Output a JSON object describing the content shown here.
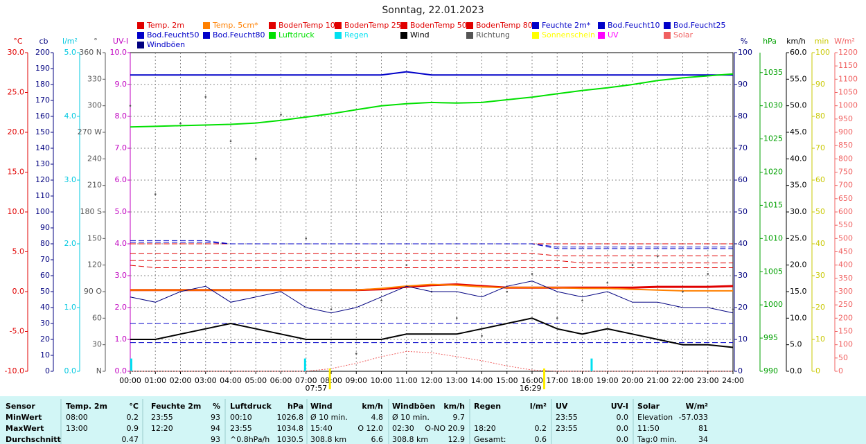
{
  "chart_data": {
    "type": "line",
    "title": "Sonntag, 22.01.2023",
    "grid": true,
    "x": [
      0,
      1,
      2,
      3,
      4,
      5,
      6,
      7,
      8,
      9,
      10,
      11,
      12,
      13,
      14,
      15,
      16,
      17,
      18,
      19,
      20,
      21,
      22,
      23,
      24
    ],
    "xlim": [
      0,
      24
    ],
    "xticks": [
      {
        "value": 0,
        "label": "00:00"
      },
      {
        "value": 1,
        "label": "01:00"
      },
      {
        "value": 2,
        "label": "02:00"
      },
      {
        "value": 3,
        "label": "03:00"
      },
      {
        "value": 4,
        "label": "04:00"
      },
      {
        "value": 5,
        "label": "05:00"
      },
      {
        "value": 6,
        "label": "06:00"
      },
      {
        "value": 7,
        "label": "07:00"
      },
      {
        "value": 8,
        "label": "08:00"
      },
      {
        "value": 9,
        "label": "09:00"
      },
      {
        "value": 10,
        "label": "10:00"
      },
      {
        "value": 11,
        "label": "11:00"
      },
      {
        "value": 12,
        "label": "12:00"
      },
      {
        "value": 13,
        "label": "13:00"
      },
      {
        "value": 14,
        "label": "14:00"
      },
      {
        "value": 15,
        "label": "15:00"
      },
      {
        "value": 16,
        "label": "16:00"
      },
      {
        "value": 17,
        "label": "17:00"
      },
      {
        "value": 18,
        "label": "18:00"
      },
      {
        "value": 19,
        "label": "19:00"
      },
      {
        "value": 20,
        "label": "20:00"
      },
      {
        "value": 21,
        "label": "21:00"
      },
      {
        "value": 22,
        "label": "22:00"
      },
      {
        "value": 23,
        "label": "23:00"
      },
      {
        "value": 24,
        "label": "24:00"
      }
    ],
    "sunrise": "07:57",
    "sunset": "16:29",
    "axes": [
      {
        "label": "°C",
        "side": "left",
        "color": "#e00000",
        "lim": [
          -10,
          30
        ],
        "ticks": [
          {
            "value": -10,
            "label": "-10.0"
          },
          {
            "value": -5,
            "label": "-5.0"
          },
          {
            "value": 0,
            "label": "0.0"
          },
          {
            "value": 5,
            "label": "5.0"
          },
          {
            "value": 10,
            "label": "10.0"
          },
          {
            "value": 15,
            "label": "15.0"
          },
          {
            "value": 20,
            "label": "20.0"
          },
          {
            "value": 25,
            "label": "25.0"
          },
          {
            "value": 30,
            "label": "30.0"
          }
        ]
      },
      {
        "label": "cb",
        "side": "left",
        "color": "#000080",
        "lim": [
          0,
          200
        ],
        "ticks": [
          0,
          10,
          20,
          30,
          40,
          50,
          60,
          70,
          80,
          90,
          100,
          110,
          120,
          130,
          140,
          150,
          160,
          170,
          180,
          190,
          200
        ]
      },
      {
        "label": "l/m²",
        "side": "left",
        "color": "#00c8e0",
        "lim": [
          0,
          5
        ],
        "ticks": [
          {
            "value": 0,
            "label": "0.0"
          },
          {
            "value": 1,
            "label": "1.0"
          },
          {
            "value": 2,
            "label": "2.0"
          },
          {
            "value": 3,
            "label": "3.0"
          },
          {
            "value": 4,
            "label": "4.0"
          },
          {
            "value": 5,
            "label": "5.0"
          }
        ]
      },
      {
        "label": "°",
        "side": "left",
        "color": "#555555",
        "lim": [
          0,
          360
        ],
        "ticks": [
          {
            "value": 0,
            "label": "N"
          },
          30,
          60,
          {
            "value": 90,
            "label": "90 O"
          },
          120,
          150,
          {
            "value": 180,
            "label": "180 S"
          },
          210,
          240,
          {
            "value": 270,
            "label": "270 W"
          },
          300,
          330,
          {
            "value": 360,
            "label": "360 N"
          }
        ]
      },
      {
        "label": "UV-I",
        "side": "left",
        "color": "#c000c0",
        "lim": [
          0,
          10
        ],
        "ticks": [
          {
            "value": 0,
            "label": "0.0"
          },
          {
            "value": 1,
            "label": "1.0"
          },
          {
            "value": 2,
            "label": "2.0"
          },
          {
            "value": 3,
            "label": "3.0"
          },
          {
            "value": 4,
            "label": "4.0"
          },
          {
            "value": 5,
            "label": "5.0"
          },
          {
            "value": 6,
            "label": "6.0"
          },
          {
            "value": 7,
            "label": "7.0"
          },
          {
            "value": 8,
            "label": "8.0"
          },
          {
            "value": 9,
            "label": "9.0"
          },
          {
            "value": 10,
            "label": "10.0"
          }
        ]
      },
      {
        "label": "%",
        "side": "right",
        "color": "#000080",
        "lim": [
          0,
          100
        ],
        "ticks": [
          0,
          10,
          20,
          30,
          40,
          50,
          60,
          70,
          80,
          90,
          100
        ]
      },
      {
        "label": "hPa",
        "side": "right",
        "color": "#00a000",
        "lim": [
          990,
          1038
        ],
        "ticks": [
          990,
          995,
          1000,
          1005,
          1010,
          1015,
          1020,
          1025,
          1030,
          1035
        ]
      },
      {
        "label": "km/h",
        "side": "right",
        "color": "#000000",
        "lim": [
          0,
          60
        ],
        "ticks": [
          {
            "value": 0,
            "label": "0.0"
          },
          {
            "value": 5,
            "label": "5.0"
          },
          {
            "value": 10,
            "label": "10.0"
          },
          {
            "value": 15,
            "label": "15.0"
          },
          {
            "value": 20,
            "label": "20.0"
          },
          {
            "value": 25,
            "label": "25.0"
          },
          {
            "value": 30,
            "label": "30.0"
          },
          {
            "value": 35,
            "label": "35.0"
          },
          {
            "value": 40,
            "label": "40.0"
          },
          {
            "value": 45,
            "label": "45.0"
          },
          {
            "value": 50,
            "label": "50.0"
          },
          {
            "value": 55,
            "label": "55.0"
          },
          {
            "value": 60,
            "label": "60.0"
          }
        ]
      },
      {
        "label": "min",
        "side": "right",
        "color": "#c8c800",
        "lim": [
          0,
          100
        ],
        "ticks": [
          0,
          10,
          20,
          30,
          40,
          50,
          60,
          70,
          80,
          90,
          100
        ]
      },
      {
        "label": "W/m²",
        "side": "right",
        "color": "#f06060",
        "lim": [
          0,
          1200
        ],
        "ticks": [
          0,
          50,
          100,
          150,
          200,
          250,
          300,
          350,
          400,
          450,
          500,
          550,
          600,
          650,
          700,
          750,
          800,
          850,
          900,
          950,
          1000,
          1050,
          1100,
          1150,
          1200
        ]
      }
    ],
    "series": [
      {
        "name": "Temp. 2m",
        "color": "#e00000",
        "axis": "°C",
        "style": "line",
        "line_width": 3,
        "values": [
          0.2,
          0.2,
          0.2,
          0.2,
          0.2,
          0.2,
          0.2,
          0.2,
          0.2,
          0.2,
          0.3,
          0.6,
          0.8,
          0.9,
          0.7,
          0.5,
          0.5,
          0.5,
          0.5,
          0.5,
          0.5,
          0.6,
          0.6,
          0.6,
          0.7
        ]
      },
      {
        "name": "Temp. 5cm*",
        "color": "#ff8000",
        "axis": "°C",
        "style": "line",
        "line_width": 2,
        "values": [
          0.2,
          0.2,
          0.2,
          0.2,
          0.2,
          0.2,
          0.2,
          0.2,
          0.2,
          0.2,
          0.4,
          0.7,
          0.9,
          0.8,
          0.6,
          0.5,
          0.5,
          0.5,
          0.4,
          0.4,
          0.3,
          0.2,
          0.1,
          0.1,
          0.1
        ]
      },
      {
        "name": "BodenTemp 10",
        "color": "#e00000",
        "axis": "°C",
        "style": "dashed",
        "line_width": 1,
        "values": [
          3.3,
          3.0,
          3.0,
          3.0,
          3.0,
          3.0,
          3.0,
          3.0,
          3.0,
          3.0,
          3.0,
          3.0,
          3.0,
          3.0,
          3.0,
          3.0,
          3.0,
          3.0,
          3.0,
          3.0,
          3.0,
          3.0,
          3.0,
          3.0,
          3.0
        ]
      },
      {
        "name": "BodenTemp 25",
        "color": "#e00000",
        "axis": "°C",
        "style": "dashed",
        "line_width": 1,
        "values": [
          3.9,
          3.9,
          3.9,
          3.9,
          3.9,
          3.9,
          3.9,
          3.9,
          3.9,
          3.9,
          3.9,
          3.9,
          3.9,
          3.9,
          3.9,
          3.9,
          3.9,
          3.9,
          3.6,
          3.6,
          3.6,
          3.6,
          3.6,
          3.6,
          3.6
        ]
      },
      {
        "name": "BodenTemp 50",
        "color": "#e00000",
        "axis": "°C",
        "style": "dashed",
        "line_width": 1,
        "values": [
          4.8,
          4.8,
          4.8,
          4.8,
          4.8,
          4.8,
          4.8,
          4.8,
          4.8,
          4.8,
          4.8,
          4.8,
          4.8,
          4.8,
          4.8,
          4.8,
          4.8,
          4.5,
          4.5,
          4.5,
          4.5,
          4.5,
          4.5,
          4.5,
          4.5
        ]
      },
      {
        "name": "BodenTemp 80",
        "color": "#e00000",
        "axis": "°C",
        "style": "dashed",
        "line_width": 1,
        "values": [
          6.0,
          6.0,
          6.0,
          6.0,
          6.0,
          6.0,
          6.0,
          6.0,
          6.0,
          6.0,
          6.0,
          6.0,
          6.0,
          6.0,
          6.0,
          6.0,
          6.0,
          6.0,
          6.0,
          6.0,
          6.0,
          6.0,
          6.0,
          6.0,
          6.0
        ]
      },
      {
        "name": "Feuchte 2m*",
        "color": "#0000c8",
        "axis": "%",
        "style": "line",
        "line_width": 2,
        "values": [
          93,
          93,
          93,
          93,
          93,
          93,
          93,
          93,
          93,
          93,
          93,
          94,
          93,
          93,
          93,
          93,
          93,
          93,
          93,
          93,
          93,
          93,
          93,
          93,
          93
        ]
      },
      {
        "name": "Bod.Feucht10",
        "color": "#0000c8",
        "axis": "%",
        "style": "dashed",
        "line_width": 1,
        "values": [
          41,
          41,
          41,
          41,
          40,
          40,
          40,
          40,
          40,
          40,
          40,
          40,
          40,
          40,
          40,
          40,
          40,
          39,
          39,
          39,
          39,
          39,
          39,
          39,
          39
        ]
      },
      {
        "name": "Bod.Feucht25",
        "color": "#0000c8",
        "axis": "%",
        "style": "dashed",
        "line_width": 1,
        "values": [
          40.5,
          40.5,
          40.5,
          40.5,
          40,
          40,
          40,
          40,
          40,
          40,
          40,
          40,
          40,
          40,
          40,
          40,
          40,
          38.5,
          38.5,
          38.5,
          38.5,
          38.5,
          38.5,
          38.5,
          38.5
        ]
      },
      {
        "name": "Bod.Feucht50",
        "color": "#0000c8",
        "axis": "%",
        "style": "dashed",
        "line_width": 1,
        "values": [
          15,
          15,
          15,
          15,
          15,
          15,
          15,
          15,
          15,
          15,
          15,
          15,
          15,
          15,
          15,
          15,
          15,
          15,
          15,
          15,
          15,
          15,
          15,
          15,
          15
        ]
      },
      {
        "name": "Bod.Feucht80",
        "color": "#0000c8",
        "axis": "%",
        "style": "dashed",
        "line_width": 1,
        "values": [
          9,
          9,
          9,
          9,
          9,
          9,
          9,
          9,
          9,
          9,
          9,
          9,
          9,
          9,
          9,
          9,
          9,
          9,
          9,
          9,
          9,
          9,
          9,
          9,
          9
        ]
      },
      {
        "name": "Luftdruck",
        "color": "#00e000",
        "axis": "hPa",
        "style": "line",
        "line_width": 2,
        "values": [
          1026.8,
          1026.9,
          1027.0,
          1027.1,
          1027.2,
          1027.4,
          1027.8,
          1028.3,
          1028.8,
          1029.4,
          1030.0,
          1030.3,
          1030.5,
          1030.4,
          1030.5,
          1030.9,
          1031.3,
          1031.8,
          1032.3,
          1032.7,
          1033.2,
          1033.8,
          1034.2,
          1034.5,
          1034.8
        ]
      },
      {
        "name": "Regen",
        "color": "#00e0f0",
        "axis": "l/m²",
        "style": "bars",
        "line_width": 1,
        "x": [
          0,
          6.92,
          18.33
        ],
        "values": [
          0.2,
          0.2,
          0.2
        ]
      },
      {
        "name": "Wind",
        "color": "#000000",
        "axis": "km/h",
        "style": "line",
        "line_width": 2,
        "values": [
          6,
          6,
          7,
          8,
          9,
          8,
          7,
          6,
          6,
          6,
          6,
          7,
          7,
          7,
          8,
          9,
          10,
          8,
          7,
          8,
          7,
          6,
          5,
          5,
          4.5
        ]
      },
      {
        "name": "Richtung",
        "color": "#555555",
        "axis": "°",
        "style": "dots",
        "line_width": 1,
        "values": [
          300,
          200,
          280,
          310,
          260,
          240,
          290,
          150,
          70,
          20,
          80,
          120,
          90,
          60,
          40,
          90,
          110,
          60,
          80,
          100,
          120,
          130,
          90,
          110,
          70
        ]
      },
      {
        "name": "Sonnenschein",
        "color": "#ffff00",
        "axis": "min",
        "style": "line",
        "line_width": 1
      },
      {
        "name": "UV",
        "color": "#ff00ff",
        "axis": "UV-I",
        "style": "line",
        "line_width": 1
      },
      {
        "name": "Solar",
        "color": "#f06060",
        "axis": "W/m²",
        "style": "dotted",
        "line_width": 1,
        "values": [
          0,
          0,
          0,
          0,
          0,
          0,
          0,
          0,
          10,
          30,
          55,
          75,
          70,
          55,
          40,
          20,
          5,
          0,
          0,
          0,
          0,
          0,
          0,
          0,
          0
        ]
      },
      {
        "name": "Windböen",
        "color": "#000080",
        "axis": "km/h",
        "style": "line",
        "line_width": 1,
        "values": [
          14,
          13,
          15,
          16,
          13,
          14,
          15,
          12,
          11,
          12,
          14,
          16,
          15,
          15,
          14,
          16,
          17,
          15,
          14,
          15,
          13,
          13,
          12,
          12,
          11
        ]
      }
    ]
  },
  "table": {
    "header": [
      "Sensor",
      "Temp. 2m",
      "°C",
      "Feuchte 2m",
      "%",
      "Luftdruck",
      "hPa",
      "Wind",
      "km/h",
      "Windböen",
      "km/h",
      "Regen",
      "l/m²",
      "UV",
      "UV-I",
      "Solar",
      "W/m²"
    ],
    "rows": [
      [
        "MinWert",
        "08:00",
        "0.2",
        "23:55",
        "93",
        "00:10",
        "1026.8",
        "Ø 10 min.",
        "4.8",
        "Ø 10 min.",
        "9.7",
        null,
        null,
        "23:55",
        "0.0",
        "Elevation",
        "-57.033"
      ],
      [
        "MaxWert",
        "13:00",
        "0.9",
        "12:20",
        "94",
        "23:55",
        "1034.8",
        "15:40",
        "O 12.0",
        "02:30",
        "O-NO 20.9",
        "18:20",
        "0.2",
        "23:55",
        "0.0",
        "11:50",
        "81"
      ],
      [
        "Durchschnitt",
        null,
        "0.47",
        null,
        "93",
        "^0.8hPa/h",
        "1030.5",
        "308.8 km",
        "6.6",
        "308.8 km",
        "12.9",
        "Gesamt:",
        "0.6",
        null,
        "0.0",
        "Tag:0 min.",
        "34"
      ]
    ]
  }
}
